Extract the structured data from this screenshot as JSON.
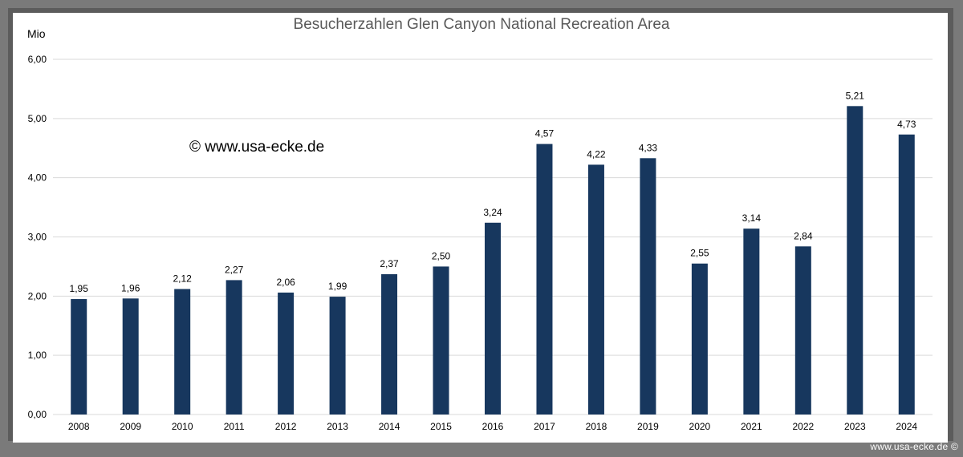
{
  "watermark": "www.usa-ecke.de ©",
  "copyright_note": "© www.usa-ecke.de",
  "colors": {
    "bar": "#17375e",
    "gridline": "#d9d9d9",
    "frame": "#7a7a7a",
    "panel": "#ffffff"
  },
  "chart_data": {
    "type": "bar",
    "title": "Besucherzahlen Glen Canyon National Recreation Area",
    "ylabel": "Mio",
    "xlabel": "",
    "ylim": [
      0,
      6
    ],
    "grid": true,
    "legend": "none",
    "yticks": [
      "0,00",
      "1,00",
      "2,00",
      "3,00",
      "4,00",
      "5,00",
      "6,00"
    ],
    "categories": [
      "2008",
      "2009",
      "2010",
      "2011",
      "2012",
      "2013",
      "2014",
      "2015",
      "2016",
      "2017",
      "2018",
      "2019",
      "2020",
      "2021",
      "2022",
      "2023",
      "2024"
    ],
    "values": [
      1.95,
      1.96,
      2.12,
      2.27,
      2.06,
      1.99,
      2.37,
      2.5,
      3.24,
      4.57,
      4.22,
      4.33,
      2.55,
      3.14,
      2.84,
      5.21,
      4.73
    ],
    "value_labels": [
      "1,95",
      "1,96",
      "2,12",
      "2,27",
      "2,06",
      "1,99",
      "2,37",
      "2,50",
      "3,24",
      "4,57",
      "4,22",
      "4,33",
      "2,55",
      "3,14",
      "2,84",
      "5,21",
      "4,73"
    ]
  }
}
